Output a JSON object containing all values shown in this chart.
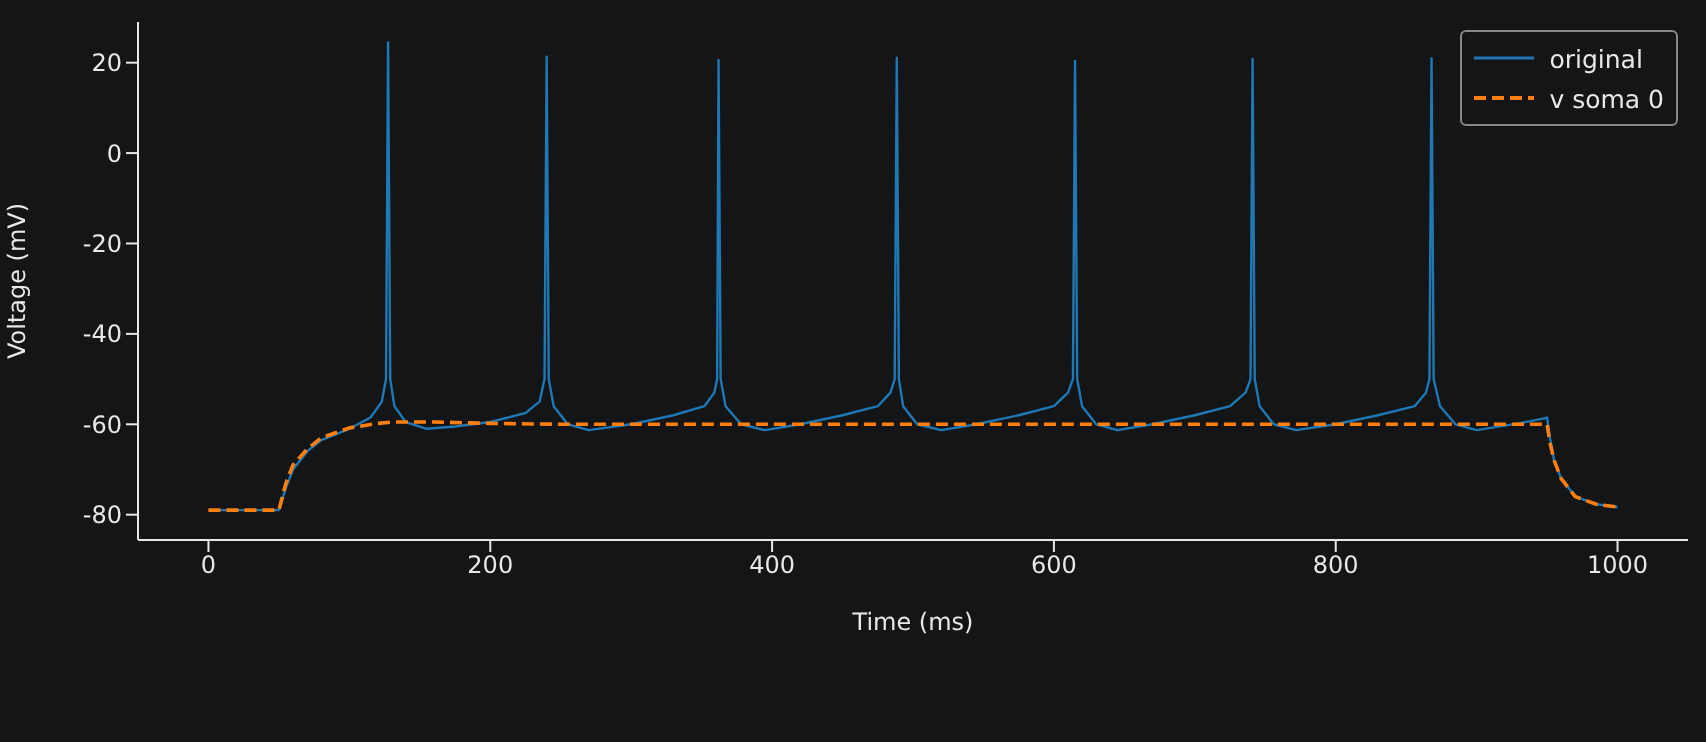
{
  "chart_data": {
    "type": "line",
    "xlabel": "Time (ms)",
    "ylabel": "Voltage (mV)",
    "xlim": [
      -50,
      1050
    ],
    "ylim": [
      -85.6,
      29
    ],
    "xticks": [
      0,
      200,
      400,
      600,
      800,
      1000
    ],
    "yticks": [
      -80,
      -60,
      -40,
      -20,
      0,
      20
    ],
    "grid": false,
    "legend": "top right",
    "marker": "none",
    "series": [
      {
        "name": "original",
        "color": "#1f77b4",
        "line_style": "solid",
        "x": [
          0,
          50,
          55,
          60,
          70,
          80,
          100,
          115,
          123,
          126,
          127.5,
          129,
          132,
          140,
          155,
          175,
          200,
          225,
          235,
          238.5,
          240,
          241.5,
          245,
          255,
          270,
          300,
          330,
          352,
          359,
          361,
          362,
          363.5,
          367,
          378,
          395,
          420,
          450,
          475,
          484,
          487,
          488.5,
          490,
          493,
          503,
          520,
          545,
          575,
          600,
          610,
          613.5,
          615,
          616.5,
          620,
          630,
          645,
          670,
          700,
          725,
          736,
          739.5,
          741,
          742.5,
          746,
          756,
          772,
          800,
          830,
          856,
          864,
          866.5,
          868,
          869.5,
          874,
          885,
          900,
          930,
          948,
          950,
          952,
          955,
          960,
          970,
          985,
          1000
        ],
        "values": [
          -79,
          -79,
          -74,
          -70,
          -66,
          -63.5,
          -61,
          -58.5,
          -55,
          -50,
          24.5,
          -50,
          -56,
          -59.5,
          -61,
          -60.5,
          -59.5,
          -57.5,
          -55,
          -50,
          21.3,
          -50,
          -56,
          -60,
          -61.3,
          -60,
          -58,
          -56,
          -53,
          -50,
          20.6,
          -50,
          -56,
          -60,
          -61.3,
          -60,
          -58,
          -56,
          -53,
          -50,
          21.1,
          -50,
          -56,
          -60,
          -61.3,
          -60,
          -58,
          -56,
          -53,
          -50,
          20.4,
          -50,
          -56,
          -60,
          -61.3,
          -60,
          -58,
          -56,
          -53,
          -50,
          20.8,
          -50,
          -56,
          -60,
          -61.3,
          -60,
          -58,
          -56,
          -53,
          -50,
          21,
          -50,
          -56,
          -60,
          -61.3,
          -59.8,
          -58.7,
          -58.5,
          -63,
          -68,
          -72,
          -76,
          -77.7,
          -78.3
        ]
      },
      {
        "name": "v soma 0",
        "color": "#ff7f0e",
        "line_style": "dashed",
        "x": [
          0,
          50,
          55,
          60,
          70,
          80,
          100,
          120,
          130,
          160,
          200,
          250,
          950,
          952,
          955,
          960,
          970,
          985,
          1000
        ],
        "values": [
          -79,
          -79,
          -73,
          -69,
          -65.5,
          -63,
          -60.8,
          -59.8,
          -59.5,
          -59.5,
          -59.8,
          -60,
          -60,
          -64,
          -68,
          -72,
          -76,
          -77.7,
          -78.3
        ]
      }
    ]
  }
}
